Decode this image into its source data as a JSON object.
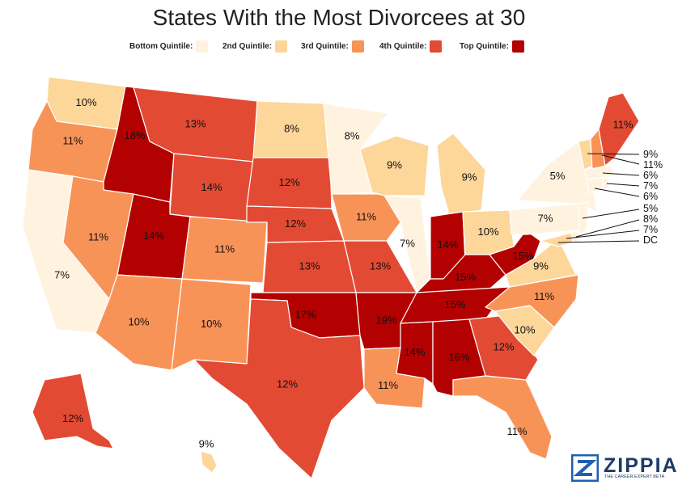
{
  "title": "States With the Most Divorcees at 30",
  "legend": [
    {
      "label": "Bottom Quintile:",
      "color": "#fff3e0"
    },
    {
      "label": "2nd Quintile:",
      "color": "#fdd69a"
    },
    {
      "label": "3rd Quintile:",
      "color": "#f89358"
    },
    {
      "label": "4th Quintile:",
      "color": "#e34a33"
    },
    {
      "label": "Top Quintile:",
      "color": "#b30000"
    }
  ],
  "states": [
    {
      "name": "WA",
      "label": "10%",
      "quintile": 2
    },
    {
      "name": "OR",
      "label": "11%",
      "quintile": 3
    },
    {
      "name": "CA",
      "label": "7%",
      "quintile": 1
    },
    {
      "name": "ID",
      "label": "18%",
      "quintile": 5
    },
    {
      "name": "NV",
      "label": "11%",
      "quintile": 3
    },
    {
      "name": "MT",
      "label": "13%",
      "quintile": 4
    },
    {
      "name": "WY",
      "label": "14%",
      "quintile": 4
    },
    {
      "name": "UT",
      "label": "14%",
      "quintile": 5
    },
    {
      "name": "AZ",
      "label": "10%",
      "quintile": 3
    },
    {
      "name": "CO",
      "label": "11%",
      "quintile": 3
    },
    {
      "name": "NM",
      "label": "10%",
      "quintile": 3
    },
    {
      "name": "ND",
      "label": "8%",
      "quintile": 2
    },
    {
      "name": "SD",
      "label": "12%",
      "quintile": 4
    },
    {
      "name": "NE",
      "label": "12%",
      "quintile": 4
    },
    {
      "name": "KS",
      "label": "13%",
      "quintile": 4
    },
    {
      "name": "OK",
      "label": "17%",
      "quintile": 5
    },
    {
      "name": "TX",
      "label": "12%",
      "quintile": 4
    },
    {
      "name": "MN",
      "label": "8%",
      "quintile": 1
    },
    {
      "name": "IA",
      "label": "11%",
      "quintile": 3
    },
    {
      "name": "MO",
      "label": "13%",
      "quintile": 4
    },
    {
      "name": "AR",
      "label": "19%",
      "quintile": 5
    },
    {
      "name": "LA",
      "label": "11%",
      "quintile": 3
    },
    {
      "name": "WI",
      "label": "9%",
      "quintile": 2
    },
    {
      "name": "IL",
      "label": "7%",
      "quintile": 1
    },
    {
      "name": "MI",
      "label": "9%",
      "quintile": 2
    },
    {
      "name": "IN",
      "label": "14%",
      "quintile": 5
    },
    {
      "name": "OH",
      "label": "10%",
      "quintile": 2
    },
    {
      "name": "KY",
      "label": "15%",
      "quintile": 5
    },
    {
      "name": "TN",
      "label": "15%",
      "quintile": 5
    },
    {
      "name": "MS",
      "label": "14%",
      "quintile": 5
    },
    {
      "name": "AL",
      "label": "16%",
      "quintile": 5
    },
    {
      "name": "GA",
      "label": "12%",
      "quintile": 4
    },
    {
      "name": "FL",
      "label": "11%",
      "quintile": 3
    },
    {
      "name": "SC",
      "label": "10%",
      "quintile": 2
    },
    {
      "name": "NC",
      "label": "11%",
      "quintile": 3
    },
    {
      "name": "VA",
      "label": "9%",
      "quintile": 2
    },
    {
      "name": "WV",
      "label": "15%",
      "quintile": 5
    },
    {
      "name": "PA",
      "label": "7%",
      "quintile": 1
    },
    {
      "name": "NY",
      "label": "5%",
      "quintile": 1
    },
    {
      "name": "ME",
      "label": "11%",
      "quintile": 4
    },
    {
      "name": "AK",
      "label": "12%",
      "quintile": 4
    },
    {
      "name": "HI",
      "label": "9%",
      "quintile": 2
    }
  ],
  "callouts": [
    {
      "label": "9%",
      "quintile": 2
    },
    {
      "label": "11%",
      "quintile": 3
    },
    {
      "label": "6%",
      "quintile": 1
    },
    {
      "label": "7%",
      "quintile": 1
    },
    {
      "label": "6%",
      "quintile": 1
    },
    {
      "label": "5%",
      "quintile": 1
    },
    {
      "label": "8%",
      "quintile": 2
    },
    {
      "label": "7%",
      "quintile": 1
    },
    {
      "label": "DC",
      "quintile": 1
    }
  ],
  "logo": {
    "word": "ZIPPIA",
    "tagline": "THE CAREER EXPERT BETA"
  }
}
